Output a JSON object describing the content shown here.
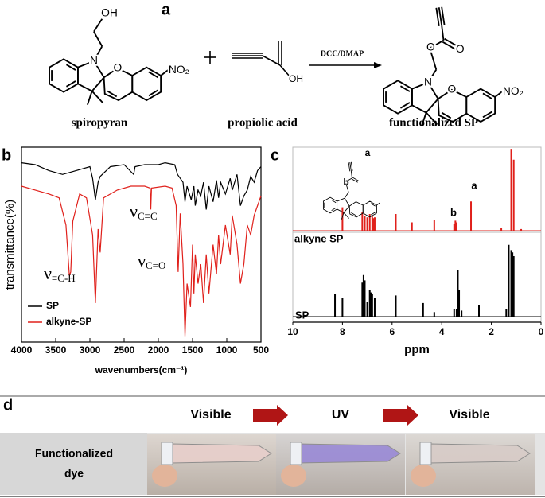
{
  "panel_a": {
    "label": "a",
    "reagent": "DCC/DMAP",
    "molecules": [
      {
        "name": "spiropyran",
        "atoms": [
          "OH",
          "N",
          "O",
          "NO₂"
        ]
      },
      {
        "name": "propiolic acid",
        "atoms": [
          "OH"
        ]
      },
      {
        "name": "functionalized SP",
        "atoms": [
          "O",
          "O",
          "N",
          "O",
          "NO₂"
        ]
      }
    ]
  },
  "chart_data": [
    {
      "type": "line",
      "label": "b",
      "xlabel": "wavenumbers(cm⁻¹)",
      "ylabel": "transmittance(%)",
      "xlim": [
        4000,
        500
      ],
      "xticks": [
        4000,
        3500,
        3000,
        2500,
        2000,
        1500,
        1000,
        500
      ],
      "ylim": [
        0,
        100
      ],
      "legend": "lower left",
      "series": [
        {
          "name": "SP",
          "color": "#000000",
          "x": [
            4000,
            3800,
            3600,
            3400,
            3200,
            3000,
            2960,
            2920,
            2880,
            2850,
            2700,
            2500,
            2360,
            2340,
            2200,
            2000,
            1900,
            1760,
            1720,
            1640,
            1610,
            1580,
            1520,
            1480,
            1460,
            1420,
            1380,
            1340,
            1300,
            1260,
            1200,
            1150,
            1120,
            1090,
            1020,
            950,
            920,
            850,
            800,
            750,
            700,
            650,
            600,
            550,
            500
          ],
          "values": [
            92,
            91,
            88,
            86,
            88,
            90,
            84,
            73,
            82,
            85,
            90,
            91,
            86,
            90,
            91,
            91,
            92,
            91,
            86,
            82,
            72,
            80,
            73,
            80,
            70,
            78,
            75,
            82,
            68,
            80,
            72,
            83,
            74,
            82,
            76,
            84,
            78,
            86,
            70,
            75,
            78,
            85,
            82,
            88,
            90
          ]
        },
        {
          "name": "alkyne-SP",
          "color": "#e0201b",
          "x": [
            4000,
            3800,
            3600,
            3450,
            3350,
            3300,
            3280,
            3250,
            3150,
            3050,
            2960,
            2920,
            2880,
            2850,
            2800,
            2600,
            2400,
            2200,
            2120,
            2110,
            2100,
            1900,
            1800,
            1740,
            1710,
            1680,
            1640,
            1610,
            1580,
            1530,
            1500,
            1480,
            1460,
            1420,
            1380,
            1340,
            1300,
            1260,
            1200,
            1150,
            1120,
            1090,
            1020,
            950,
            920,
            850,
            800,
            750,
            700,
            650,
            600,
            550,
            500
          ],
          "values": [
            80,
            78,
            76,
            74,
            60,
            34,
            36,
            62,
            76,
            74,
            55,
            20,
            58,
            46,
            74,
            78,
            80,
            80,
            79,
            68,
            79,
            80,
            79,
            70,
            36,
            66,
            40,
            3,
            30,
            18,
            50,
            25,
            45,
            30,
            40,
            20,
            45,
            25,
            50,
            35,
            55,
            40,
            60,
            45,
            65,
            50,
            30,
            40,
            60,
            55,
            65,
            70,
            75
          ]
        }
      ],
      "annotations": [
        {
          "symbol": "ν",
          "subscript": "≡C-H"
        },
        {
          "symbol": "ν",
          "subscript": "C≡C"
        },
        {
          "symbol": "ν",
          "subscript": "C=O"
        }
      ]
    },
    {
      "type": "stem",
      "label": "c",
      "xlabel": "ppm",
      "xlim": [
        10,
        0
      ],
      "xticks": [
        10,
        8,
        6,
        4,
        2,
        0
      ],
      "ylim": [
        0,
        1
      ],
      "series": [
        {
          "name": "alkyne SP",
          "color": "#e0201b",
          "x": [
            8.0,
            7.2,
            7.1,
            7.0,
            6.9,
            6.8,
            6.75,
            6.7,
            5.85,
            5.2,
            4.3,
            3.5,
            3.45,
            3.4,
            2.82,
            1.6,
            1.2,
            1.1,
            0.8
          ],
          "values": [
            0.28,
            0.22,
            0.18,
            0.16,
            0.2,
            0.18,
            0.15,
            0.16,
            0.2,
            0.1,
            0.13,
            0.08,
            0.12,
            0.1,
            0.35,
            0.03,
            0.98,
            0.85,
            0.02
          ]
        },
        {
          "name": "SP",
          "color": "#000000",
          "x": [
            8.3,
            8.0,
            7.2,
            7.15,
            7.1,
            7.0,
            6.9,
            6.85,
            6.8,
            6.7,
            5.85,
            4.75,
            4.3,
            3.5,
            3.4,
            3.35,
            3.3,
            3.2,
            2.5,
            1.4,
            1.3,
            1.2,
            1.15,
            1.1
          ],
          "values": [
            0.3,
            0.25,
            0.45,
            0.55,
            0.48,
            0.2,
            0.35,
            0.32,
            0.3,
            0.25,
            0.28,
            0.18,
            0.06,
            0.1,
            0.1,
            0.62,
            0.35,
            0.08,
            0.15,
            0.1,
            0.95,
            0.88,
            0.85,
            0.8
          ]
        }
      ],
      "annotations": [
        "a",
        "b",
        "a",
        "b"
      ]
    }
  ],
  "panel_d": {
    "label": "d",
    "columns": [
      "Visible",
      "UV",
      "Visible"
    ],
    "row_header": [
      "Functionalized",
      "dye"
    ]
  }
}
